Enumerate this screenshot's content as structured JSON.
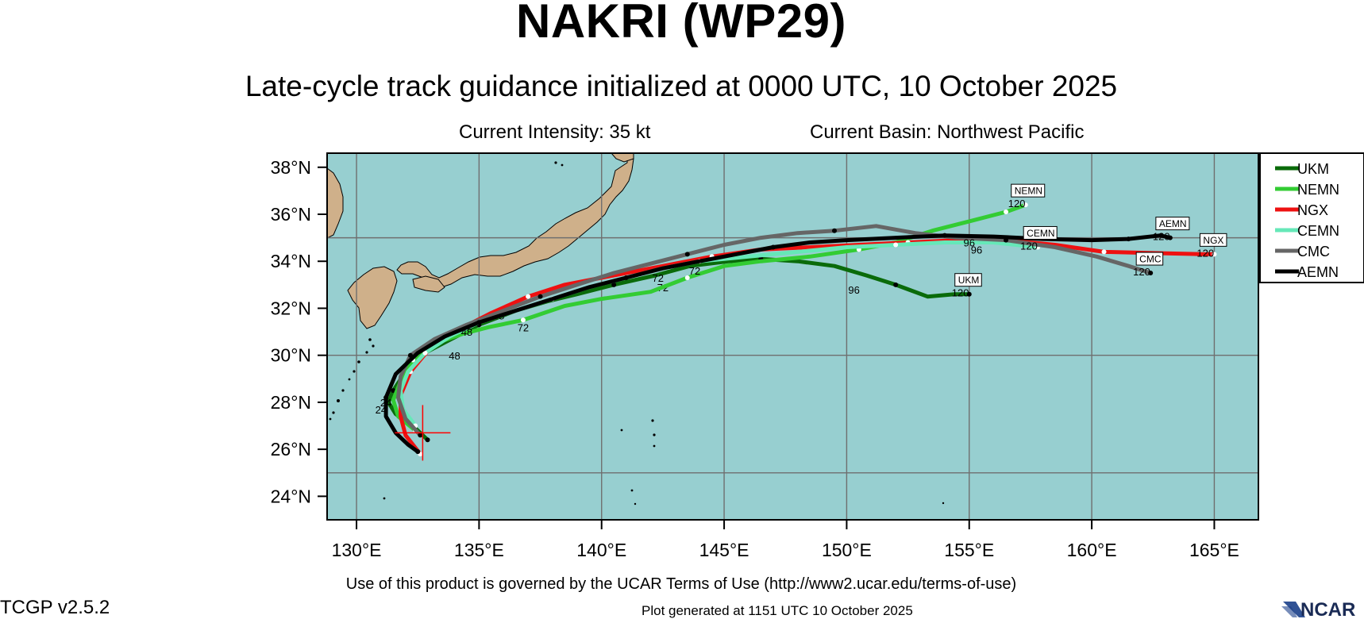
{
  "title": "NAKRI (WP29)",
  "subtitle": "Late-cycle track guidance initialized at 0000 UTC, 10 October 2025",
  "current_intensity": "Current Intensity: 35 kt",
  "current_basin": "Current Basin: Northwest Pacific",
  "terms": "Use of this product is governed by the UCAR Terms of Use (http://www2.ucar.edu/terms-of-use)",
  "version": "TCGP v2.5.2",
  "generated": "Plot generated at 1151 UTC   10 October 2025",
  "logo_text": "NCAR",
  "colors": {
    "ocean": "#97cfd0",
    "land": "#cfb08a",
    "grid": "#6f6f6f",
    "current_position": "#ff0000"
  },
  "map": {
    "lon_range": [
      128.8,
      166.8
    ],
    "lat_range": [
      23.0,
      38.6
    ],
    "lon_ticks": [
      130,
      135,
      140,
      145,
      150,
      155,
      160,
      165
    ],
    "lon_tick_labels": [
      "130°E",
      "135°E",
      "140°E",
      "145°E",
      "150°E",
      "155°E",
      "160°E",
      "165°E"
    ],
    "lat_ticks": [
      24,
      26,
      28,
      30,
      32,
      34,
      36,
      38
    ],
    "lat_tick_labels": [
      "24°N",
      "26°N",
      "28°N",
      "30°N",
      "32°N",
      "34°N",
      "36°N",
      "38°N"
    ],
    "grid_lons": [
      130,
      135,
      140,
      145,
      150,
      155,
      160,
      165
    ],
    "grid_lats": [
      25,
      30,
      35
    ],
    "current_position": {
      "lon": 132.7,
      "lat": 26.7
    }
  },
  "chart_data": {
    "type": "scatter",
    "legend_position": "right",
    "series": [
      {
        "name": "UKM",
        "color": "#0a6b0a",
        "track": [
          [
            132.9,
            26.4
          ],
          [
            132.3,
            27.0
          ],
          [
            131.6,
            27.5
          ],
          [
            131.3,
            28.0
          ],
          [
            131.5,
            28.5
          ],
          [
            132.0,
            29.3
          ],
          [
            132.6,
            30.0
          ],
          [
            133.7,
            30.6
          ],
          [
            135.0,
            31.3
          ],
          [
            136.5,
            31.9
          ],
          [
            137.8,
            32.3
          ],
          [
            139.0,
            32.6
          ],
          [
            140.5,
            33.0
          ],
          [
            142.2,
            33.4
          ],
          [
            143.6,
            33.8
          ],
          [
            145.2,
            34.0
          ],
          [
            146.5,
            34.1
          ],
          [
            148.0,
            34.0
          ],
          [
            149.5,
            33.8
          ],
          [
            150.8,
            33.4
          ],
          [
            152.0,
            33.0
          ],
          [
            153.3,
            32.5
          ],
          [
            154.4,
            32.6
          ],
          [
            155.0,
            32.6
          ]
        ],
        "end_label": "UKM",
        "end_hour": "120",
        "hour_labels": [
          {
            "h": "24",
            "lon": 131.0,
            "lat": 28.0
          },
          {
            "h": "48",
            "lon": 134.0,
            "lat": 30.3
          },
          {
            "h": "72",
            "lon": 142.5,
            "lat": 33.2
          },
          {
            "h": "96",
            "lon": 150.3,
            "lat": 33.1
          }
        ]
      },
      {
        "name": "NEMN",
        "color": "#33cc33",
        "track": [
          [
            132.4,
            26.8
          ],
          [
            131.7,
            27.4
          ],
          [
            131.5,
            28.1
          ],
          [
            131.8,
            28.9
          ],
          [
            132.3,
            29.8
          ],
          [
            133.2,
            30.5
          ],
          [
            134.3,
            30.9
          ],
          [
            135.4,
            31.2
          ],
          [
            136.8,
            31.5
          ],
          [
            138.5,
            32.1
          ],
          [
            140.0,
            32.4
          ],
          [
            142.0,
            32.7
          ],
          [
            143.5,
            33.3
          ],
          [
            145.0,
            33.8
          ],
          [
            146.5,
            34.0
          ],
          [
            148.5,
            34.2
          ],
          [
            150.5,
            34.5
          ],
          [
            152.0,
            34.8
          ],
          [
            153.5,
            35.3
          ],
          [
            155.0,
            35.7
          ],
          [
            156.5,
            36.1
          ],
          [
            157.3,
            36.4
          ]
        ],
        "end_label": "NEMN",
        "end_hour": "120",
        "hour_labels": [
          {
            "h": "72",
            "lon": 136.8,
            "lat": 31.5
          }
        ]
      },
      {
        "name": "NGX",
        "color": "#ee1111",
        "track": [
          [
            132.6,
            25.8
          ],
          [
            132.0,
            26.6
          ],
          [
            131.8,
            27.4
          ],
          [
            131.8,
            28.3
          ],
          [
            132.2,
            29.3
          ],
          [
            133.0,
            30.3
          ],
          [
            134.0,
            31.0
          ],
          [
            135.5,
            31.8
          ],
          [
            137.0,
            32.5
          ],
          [
            138.5,
            33.0
          ],
          [
            140.5,
            33.4
          ],
          [
            142.5,
            33.8
          ],
          [
            144.5,
            34.2
          ],
          [
            146.5,
            34.5
          ],
          [
            148.5,
            34.6
          ],
          [
            150.5,
            34.7
          ],
          [
            152.5,
            34.8
          ],
          [
            154.5,
            34.9
          ],
          [
            156.5,
            34.9
          ],
          [
            158.5,
            34.7
          ],
          [
            160.5,
            34.4
          ],
          [
            162.5,
            34.35
          ],
          [
            164.5,
            34.3
          ],
          [
            165.0,
            34.3
          ]
        ],
        "end_label": "NGX",
        "end_hour": "120",
        "hour_labels": [
          {
            "h": "48",
            "lon": 135.8,
            "lat": 32.0
          },
          {
            "h": "72",
            "lon": 143.8,
            "lat": 33.9
          },
          {
            "h": "96",
            "lon": 155.3,
            "lat": 34.8
          }
        ]
      },
      {
        "name": "CEMN",
        "color": "#66e8b8",
        "track": [
          [
            132.4,
            27.0
          ],
          [
            131.9,
            27.7
          ],
          [
            131.8,
            28.5
          ],
          [
            132.1,
            29.3
          ],
          [
            132.8,
            30.1
          ],
          [
            133.8,
            30.8
          ],
          [
            135.0,
            31.4
          ],
          [
            136.5,
            31.9
          ],
          [
            138.0,
            32.4
          ],
          [
            139.5,
            32.9
          ],
          [
            141.0,
            33.3
          ],
          [
            142.5,
            33.7
          ],
          [
            144.0,
            34.0
          ],
          [
            146.0,
            34.2
          ],
          [
            148.0,
            34.4
          ],
          [
            150.0,
            34.6
          ],
          [
            152.0,
            34.7
          ],
          [
            154.0,
            34.8
          ],
          [
            156.0,
            34.8
          ],
          [
            157.8,
            34.6
          ]
        ],
        "end_label": "CEMN",
        "end_hour": "120",
        "hour_labels": []
      },
      {
        "name": "CMC",
        "color": "#666666",
        "track": [
          [
            132.6,
            26.6
          ],
          [
            132.0,
            27.3
          ],
          [
            131.7,
            28.2
          ],
          [
            131.8,
            29.1
          ],
          [
            132.2,
            30.0
          ],
          [
            133.2,
            30.7
          ],
          [
            134.5,
            31.3
          ],
          [
            136.0,
            31.9
          ],
          [
            137.5,
            32.5
          ],
          [
            139.0,
            33.0
          ],
          [
            140.5,
            33.5
          ],
          [
            142.0,
            33.9
          ],
          [
            143.5,
            34.3
          ],
          [
            145.0,
            34.7
          ],
          [
            146.5,
            35.0
          ],
          [
            148.0,
            35.2
          ],
          [
            149.5,
            35.3
          ],
          [
            151.2,
            35.5
          ],
          [
            152.8,
            35.2
          ],
          [
            154.5,
            35.0
          ],
          [
            156.5,
            34.9
          ],
          [
            158.5,
            34.6
          ],
          [
            160.2,
            34.2
          ],
          [
            161.5,
            33.8
          ],
          [
            162.4,
            33.5
          ]
        ],
        "end_label": "CMC",
        "end_hour": "120",
        "hour_labels": []
      },
      {
        "name": "AEMN",
        "color": "#000000",
        "track": [
          [
            132.5,
            25.9
          ],
          [
            132.1,
            26.2
          ],
          [
            131.6,
            26.7
          ],
          [
            131.2,
            27.4
          ],
          [
            131.2,
            28.2
          ],
          [
            131.6,
            29.2
          ],
          [
            132.5,
            30.1
          ],
          [
            133.6,
            30.8
          ],
          [
            135.0,
            31.4
          ],
          [
            136.5,
            31.9
          ],
          [
            138.0,
            32.4
          ],
          [
            139.5,
            32.9
          ],
          [
            141.0,
            33.3
          ],
          [
            142.5,
            33.7
          ],
          [
            144.0,
            34.0
          ],
          [
            145.5,
            34.3
          ],
          [
            147.0,
            34.6
          ],
          [
            148.5,
            34.8
          ],
          [
            150.0,
            34.9
          ],
          [
            152.0,
            35.0
          ],
          [
            154.0,
            35.1
          ],
          [
            156.0,
            35.05
          ],
          [
            158.0,
            34.95
          ],
          [
            160.0,
            34.9
          ],
          [
            161.5,
            34.95
          ],
          [
            162.8,
            35.1
          ],
          [
            163.2,
            35.0
          ]
        ],
        "end_label": "AEMN",
        "end_hour": "120",
        "hour_labels": [
          {
            "h": "24",
            "lon": 131.2,
            "lat": 28.3
          },
          {
            "h": "48",
            "lon": 134.5,
            "lat": 31.3
          },
          {
            "h": "72",
            "lon": 142.3,
            "lat": 33.6
          },
          {
            "h": "96",
            "lon": 155.0,
            "lat": 35.1
          }
        ]
      }
    ]
  }
}
